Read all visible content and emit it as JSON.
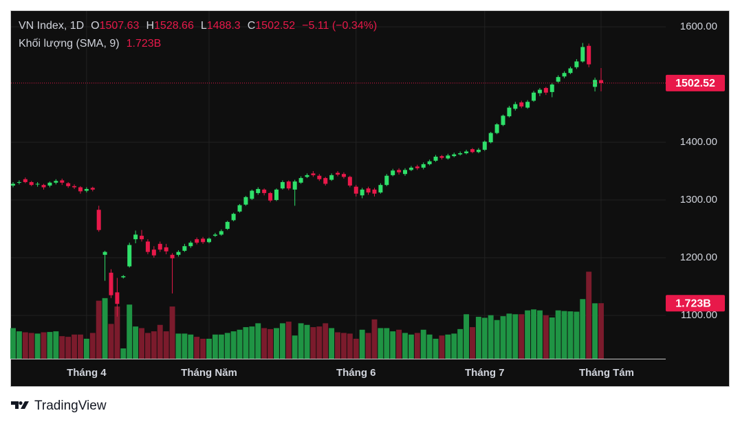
{
  "chart_data": {
    "type": "candlestick",
    "title": "VN Index, 1D",
    "ohlc_labels": {
      "open": "O",
      "high": "H",
      "low": "L",
      "close": "C"
    },
    "change_label": "−5.11 (−0.34%)",
    "source": "TradingView",
    "up_color": "#2fe06a",
    "down_color": "#e8194a",
    "categories": [
      null,
      null,
      null,
      null,
      null,
      null,
      null,
      null,
      null,
      null,
      null,
      null,
      "Tháng 4",
      null,
      null,
      null,
      null,
      null,
      null,
      null,
      null,
      null,
      null,
      null,
      null,
      null,
      null,
      null,
      null,
      null,
      null,
      null,
      "Tháng Năm",
      null,
      null,
      null,
      null,
      null,
      null,
      null,
      null,
      null,
      null,
      null,
      null,
      null,
      null,
      null,
      null,
      null,
      null,
      null,
      null,
      null,
      null,
      null,
      "Tháng 6",
      null,
      null,
      null,
      null,
      null,
      null,
      null,
      null,
      null,
      null,
      null,
      null,
      null,
      null,
      null,
      null,
      null,
      null,
      null,
      null,
      "Tháng 7",
      null,
      null,
      null,
      null,
      null,
      null,
      null,
      null,
      null,
      null,
      null,
      null,
      null,
      null,
      null,
      null,
      null,
      null,
      "Tháng Tám"
    ],
    "open": [
      1325,
      1330,
      1336,
      1331,
      1327,
      1326,
      1325,
      1330,
      1334,
      1329,
      1324,
      1322,
      1316,
      1321,
      1283,
      1205,
      1174,
      1140,
      1166,
      1185,
      1232,
      1238,
      1228,
      1214,
      1224,
      1218,
      1205,
      1205,
      1212,
      1220,
      1232,
      1233,
      1227,
      1238,
      1240,
      1250,
      1265,
      1280,
      1292,
      1302,
      1312,
      1318,
      1312,
      1300,
      1320,
      1332,
      1318,
      1330,
      1340,
      1346,
      1342,
      1338,
      1335,
      1347,
      1345,
      1340,
      1323,
      1308,
      1320,
      1318,
      1313,
      1326,
      1343,
      1352,
      1345,
      1352,
      1358,
      1356,
      1362,
      1368,
      1376,
      1372,
      1376,
      1379,
      1381,
      1388,
      1383,
      1387,
      1400,
      1416,
      1430,
      1445,
      1458,
      1469,
      1460,
      1472,
      1485,
      1494,
      1487,
      1505,
      1514,
      1520,
      1530,
      1540,
      1567,
      1496,
      1507.63
    ],
    "high": [
      1331,
      1334,
      1339,
      1333,
      1331,
      1328,
      1332,
      1336,
      1337,
      1331,
      1327,
      1324,
      1322,
      1323,
      1290,
      1212,
      1180,
      1165,
      1170,
      1226,
      1247,
      1248,
      1232,
      1220,
      1228,
      1224,
      1208,
      1213,
      1224,
      1229,
      1235,
      1236,
      1235,
      1243,
      1249,
      1264,
      1278,
      1293,
      1307,
      1318,
      1322,
      1320,
      1314,
      1320,
      1334,
      1334,
      1335,
      1341,
      1346,
      1350,
      1345,
      1340,
      1346,
      1350,
      1348,
      1342,
      1326,
      1321,
      1323,
      1321,
      1329,
      1345,
      1354,
      1355,
      1355,
      1359,
      1361,
      1365,
      1370,
      1378,
      1378,
      1380,
      1382,
      1384,
      1387,
      1390,
      1390,
      1403,
      1418,
      1433,
      1448,
      1463,
      1470,
      1472,
      1473,
      1489,
      1494,
      1496,
      1503,
      1516,
      1523,
      1531,
      1544,
      1572,
      1571,
      1512,
      1528.66
    ],
    "low": [
      1322,
      1327,
      1329,
      1324,
      1323,
      1318,
      1322,
      1327,
      1326,
      1321,
      1319,
      1311,
      1313,
      1315,
      1245,
      1160,
      1130,
      1098,
      1164,
      1183,
      1225,
      1228,
      1206,
      1200,
      1210,
      1206,
      1138,
      1202,
      1210,
      1217,
      1223,
      1224,
      1225,
      1236,
      1238,
      1248,
      1263,
      1278,
      1290,
      1300,
      1309,
      1308,
      1296,
      1298,
      1318,
      1317,
      1290,
      1328,
      1338,
      1340,
      1333,
      1325,
      1333,
      1341,
      1337,
      1322,
      1306,
      1303,
      1309,
      1306,
      1311,
      1324,
      1341,
      1344,
      1342,
      1350,
      1352,
      1353,
      1360,
      1366,
      1370,
      1370,
      1374,
      1377,
      1379,
      1381,
      1381,
      1385,
      1398,
      1414,
      1428,
      1443,
      1455,
      1459,
      1458,
      1470,
      1480,
      1482,
      1478,
      1502,
      1511,
      1518,
      1527,
      1538,
      1530,
      1488,
      1488.3
    ],
    "close": [
      1328,
      1331,
      1331,
      1326,
      1328,
      1322,
      1330,
      1333,
      1330,
      1324,
      1322,
      1315,
      1319,
      1318,
      1248,
      1210,
      1135,
      1120,
      1168,
      1222,
      1240,
      1232,
      1210,
      1204,
      1214,
      1211,
      1199,
      1210,
      1220,
      1226,
      1226,
      1227,
      1233,
      1240,
      1246,
      1262,
      1276,
      1291,
      1305,
      1316,
      1319,
      1312,
      1299,
      1318,
      1331,
      1320,
      1332,
      1338,
      1343,
      1343,
      1336,
      1328,
      1343,
      1344,
      1340,
      1325,
      1311,
      1318,
      1313,
      1311,
      1326,
      1342,
      1351,
      1348,
      1352,
      1356,
      1355,
      1362,
      1367,
      1375,
      1373,
      1377,
      1379,
      1381,
      1384,
      1383,
      1387,
      1401,
      1416,
      1431,
      1446,
      1460,
      1466,
      1462,
      1470,
      1486,
      1491,
      1486,
      1500,
      1513,
      1520,
      1528,
      1540,
      1565,
      1535,
      1508,
      1502.52
    ],
    "ylim": [
      1025,
      1627.4
    ],
    "yticks": [
      {
        "value": 1100,
        "label": "1100.00"
      },
      {
        "value": 1200,
        "label": "1200.00"
      },
      {
        "value": 1300,
        "label": "1300.00"
      },
      {
        "value": 1400,
        "label": "1400.00"
      },
      {
        "value": 1600,
        "label": "1600.00"
      }
    ],
    "grid": true,
    "y2lim": [
      0,
      10.79
    ],
    "volume": {
      "name": "Khối lượng (SMA, 9)",
      "axis": "y2",
      "up_color": "#1f9444",
      "down_color": "#7b1b2c",
      "values": [
        0.95,
        0.85,
        0.82,
        0.8,
        0.78,
        0.82,
        0.83,
        0.85,
        0.7,
        0.68,
        0.75,
        0.75,
        0.62,
        0.8,
        1.8,
        1.88,
        1.08,
        1.62,
        0.32,
        1.68,
        1.0,
        0.95,
        0.8,
        0.85,
        1.05,
        0.85,
        1.62,
        0.78,
        0.78,
        0.75,
        0.68,
        0.62,
        0.62,
        0.75,
        0.75,
        0.8,
        0.85,
        0.9,
        0.98,
        1.0,
        1.1,
        0.95,
        0.92,
        0.95,
        1.1,
        1.15,
        0.72,
        1.1,
        1.05,
        0.98,
        1.0,
        1.1,
        0.95,
        0.82,
        0.8,
        0.78,
        0.62,
        0.9,
        0.8,
        1.22,
        0.95,
        0.95,
        0.85,
        0.9,
        0.8,
        0.75,
        0.8,
        0.9,
        0.75,
        0.62,
        0.72,
        0.75,
        0.78,
        0.92,
        1.38,
        0.98,
        1.3,
        1.27,
        1.35,
        1.2,
        1.32,
        1.4,
        1.38,
        1.38,
        1.5,
        1.53,
        1.5,
        1.35,
        1.28,
        1.5,
        1.48,
        1.47,
        1.46,
        1.85,
        2.7,
        1.72,
        1.723
      ],
      "value_labels": [
        null,
        null,
        null,
        null,
        null,
        null,
        null,
        null,
        null,
        null,
        null,
        null,
        null,
        null,
        null,
        null,
        null,
        null,
        null,
        null,
        null,
        null,
        null,
        null,
        null,
        null,
        null,
        null,
        null,
        null,
        null,
        null,
        null,
        null,
        null,
        null,
        null,
        null,
        null,
        null,
        null,
        null,
        null,
        null,
        null,
        null,
        null,
        null,
        null,
        null,
        null,
        null,
        null,
        null,
        null,
        null,
        null,
        null,
        null,
        null,
        null,
        null,
        null,
        null,
        null,
        null,
        null,
        null,
        null,
        null,
        null,
        null,
        null,
        null,
        null,
        null,
        null,
        null,
        null,
        null,
        null,
        null,
        null,
        null,
        null,
        null,
        null,
        null,
        null,
        null,
        null,
        null,
        null,
        null,
        null,
        null,
        "1.723B"
      ]
    }
  }
}
